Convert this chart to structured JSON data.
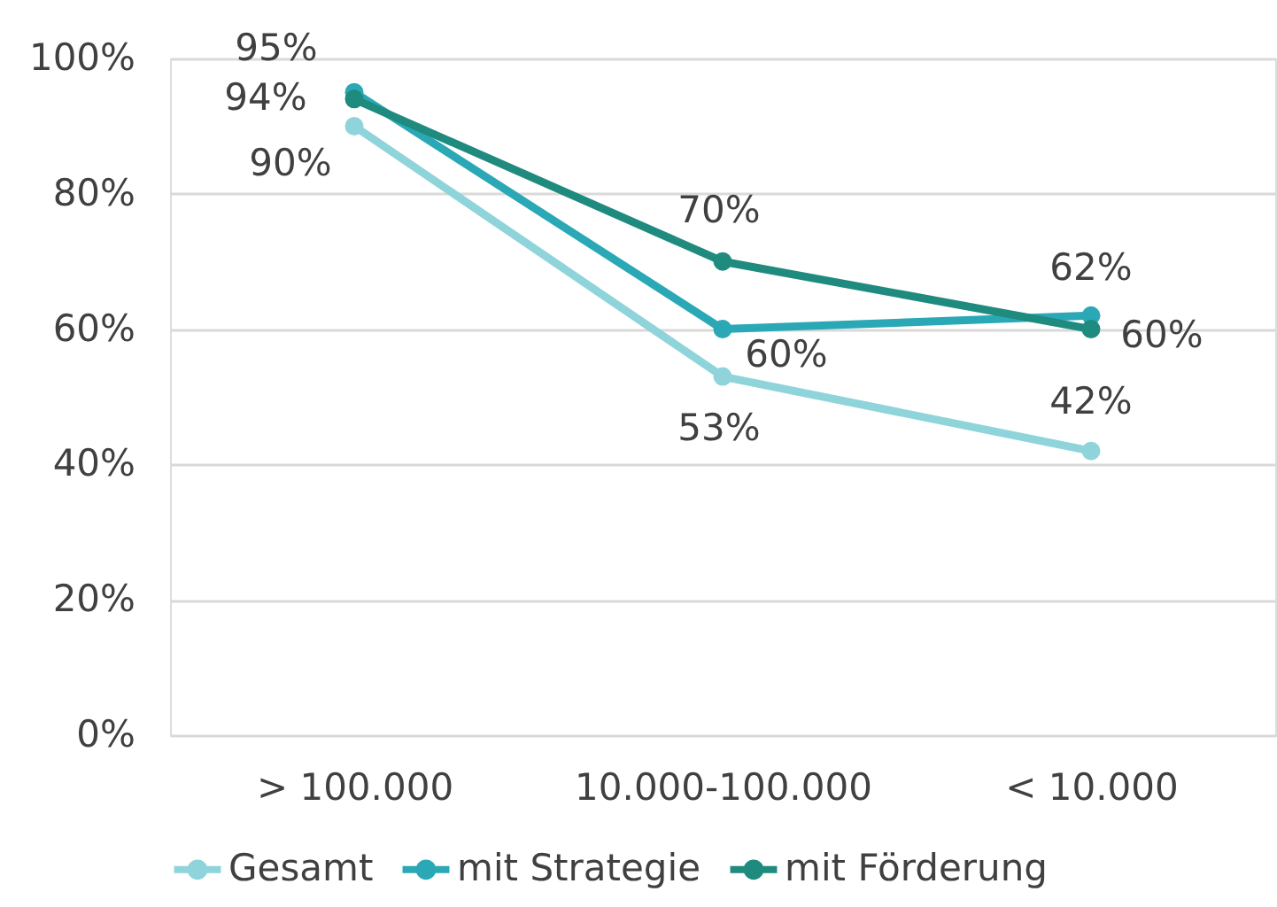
{
  "chart_data": {
    "type": "line",
    "categories": [
      "> 100.000",
      "10.000-100.000",
      "< 10.000"
    ],
    "series": [
      {
        "name": "Gesamt",
        "color": "#8fd4da",
        "values": [
          90,
          53,
          42
        ],
        "value_labels": [
          "90%",
          "53%",
          "42%"
        ]
      },
      {
        "name": "mit Strategie",
        "color": "#2aa8b6",
        "values": [
          95,
          60,
          62
        ],
        "value_labels": [
          "95%",
          "60%",
          "62%"
        ]
      },
      {
        "name": "mit Förderung",
        "color": "#1f8a7e",
        "values": [
          94,
          70,
          60
        ],
        "value_labels": [
          "94%",
          "70%",
          "60%"
        ]
      }
    ],
    "ylim": [
      0,
      100
    ],
    "yticks": [
      {
        "value": 0,
        "label": "0%"
      },
      {
        "value": 20,
        "label": "20%"
      },
      {
        "value": 40,
        "label": "40%"
      },
      {
        "value": 60,
        "label": "60%"
      },
      {
        "value": 80,
        "label": "80%"
      },
      {
        "value": 100,
        "label": "100%"
      }
    ],
    "grid": "y",
    "legend": "bottom",
    "marker": "circle",
    "line_style": "solid"
  }
}
